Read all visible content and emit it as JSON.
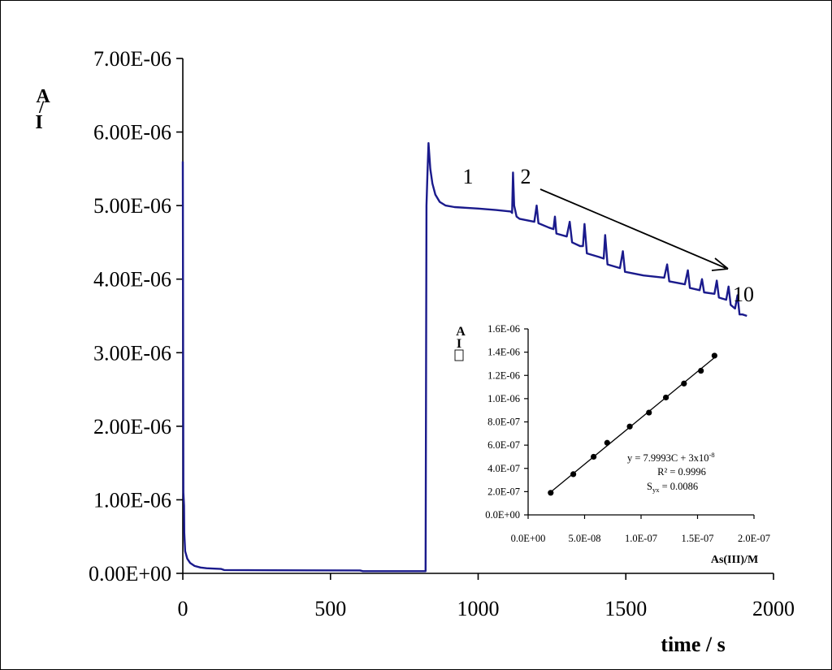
{
  "chart_data": [
    {
      "type": "line",
      "xlabel": "time / s",
      "ylabel": "I / A",
      "ylabel_parts": [
        "I",
        "/",
        "A"
      ],
      "xlim": [
        0,
        2000
      ],
      "ylim": [
        0,
        7e-06
      ],
      "x_ticks": [
        "0",
        "500",
        "1000",
        "1500",
        "2000"
      ],
      "y_ticks": [
        "0.00E+00",
        "1.00E-06",
        "2.00E-06",
        "3.00E-06",
        "4.00E-06",
        "5.00E-06",
        "6.00E-06",
        "7.00E-06"
      ],
      "grid": false,
      "annotations": [
        "1",
        "2",
        "10"
      ],
      "series": [
        {
          "color": "#1a1a8c",
          "points": [
            [
              0,
              5.6e-06
            ],
            [
              2,
              1.1e-06
            ],
            [
              4,
              9.2e-07
            ],
            [
              5,
              5.5e-07
            ],
            [
              8,
              3e-07
            ],
            [
              15,
              2e-07
            ],
            [
              25,
              1.4e-07
            ],
            [
              40,
              1e-07
            ],
            [
              60,
              8e-08
            ],
            [
              80,
              7e-08
            ],
            [
              100,
              6.5e-08
            ],
            [
              130,
              6e-08
            ],
            [
              140,
              4.5e-08
            ],
            [
              300,
              4.2e-08
            ],
            [
              600,
              4e-08
            ],
            [
              610,
              3e-08
            ],
            [
              810,
              3e-08
            ],
            [
              822,
              3e-08
            ],
            [
              825,
              5e-06
            ],
            [
              828,
              5.4e-06
            ],
            [
              832,
              5.85e-06
            ],
            [
              838,
              5.5e-06
            ],
            [
              845,
              5.3e-06
            ],
            [
              855,
              5.15e-06
            ],
            [
              870,
              5.05e-06
            ],
            [
              890,
              5e-06
            ],
            [
              920,
              4.98e-06
            ],
            [
              1000,
              4.96e-06
            ],
            [
              1060,
              4.94e-06
            ],
            [
              1110,
              4.92e-06
            ],
            [
              1115,
              4.9e-06
            ],
            [
              1118,
              5.45e-06
            ],
            [
              1122,
              5e-06
            ],
            [
              1130,
              4.85e-06
            ],
            [
              1140,
              4.82e-06
            ],
            [
              1190,
              4.78e-06
            ],
            [
              1198,
              5e-06
            ],
            [
              1204,
              4.76e-06
            ],
            [
              1240,
              4.7e-06
            ],
            [
              1255,
              4.68e-06
            ],
            [
              1260,
              4.85e-06
            ],
            [
              1265,
              4.62e-06
            ],
            [
              1300,
              4.58e-06
            ],
            [
              1310,
              4.78e-06
            ],
            [
              1318,
              4.5e-06
            ],
            [
              1345,
              4.45e-06
            ],
            [
              1355,
              4.45e-06
            ],
            [
              1360,
              4.75e-06
            ],
            [
              1368,
              4.35e-06
            ],
            [
              1410,
              4.3e-06
            ],
            [
              1425,
              4.28e-06
            ],
            [
              1430,
              4.6e-06
            ],
            [
              1438,
              4.2e-06
            ],
            [
              1480,
              4.15e-06
            ],
            [
              1490,
              4.38e-06
            ],
            [
              1497,
              4.1e-06
            ],
            [
              1560,
              4.05e-06
            ],
            [
              1630,
              4.02e-06
            ],
            [
              1640,
              4.2e-06
            ],
            [
              1647,
              3.97e-06
            ],
            [
              1700,
              3.93e-06
            ],
            [
              1710,
              4.12e-06
            ],
            [
              1717,
              3.88e-06
            ],
            [
              1750,
              3.85e-06
            ],
            [
              1758,
              4e-06
            ],
            [
              1765,
              3.82e-06
            ],
            [
              1800,
              3.8e-06
            ],
            [
              1808,
              3.98e-06
            ],
            [
              1815,
              3.75e-06
            ],
            [
              1840,
              3.72e-06
            ],
            [
              1848,
              3.9e-06
            ],
            [
              1855,
              3.65e-06
            ],
            [
              1870,
              3.6e-06
            ],
            [
              1878,
              3.78e-06
            ],
            [
              1885,
              3.52e-06
            ],
            [
              1895,
              3.52e-06
            ],
            [
              1910,
              3.5e-06
            ]
          ]
        }
      ]
    },
    {
      "type": "scatter",
      "xlabel": "As(III)/M",
      "ylabel": "I / A",
      "ylabel_parts": [
        "I",
        "/",
        "A"
      ],
      "xlim": [
        0,
        2e-07
      ],
      "ylim": [
        0,
        1.6e-06
      ],
      "x_ticks": [
        "0.0E+00",
        "5.0E-08",
        "1.0E-07",
        "1.5E-07",
        "2.0E-07"
      ],
      "y_ticks": [
        "0.0E+00",
        "2.0E-07",
        "4.0E-07",
        "6.0E-07",
        "8.0E-07",
        "1.0E-06",
        "1.2E-06",
        "1.4E-06",
        "1.6E-06"
      ],
      "grid": false,
      "series": [
        {
          "x": [
            2e-08,
            4e-08,
            5.8e-08,
            7e-08,
            9e-08,
            1.07e-07,
            1.22e-07,
            1.38e-07,
            1.53e-07,
            1.65e-07
          ],
          "y": [
            1.9e-07,
            3.5e-07,
            5e-07,
            6.2e-07,
            7.6e-07,
            8.8e-07,
            1.01e-06,
            1.13e-06,
            1.24e-06,
            1.37e-06
          ]
        }
      ],
      "annotations": [
        "y = 7.9993C + 3x10",
        "-8",
        "R² = 0.9996",
        "S",
        "yx",
        " = 0.0086"
      ]
    }
  ]
}
